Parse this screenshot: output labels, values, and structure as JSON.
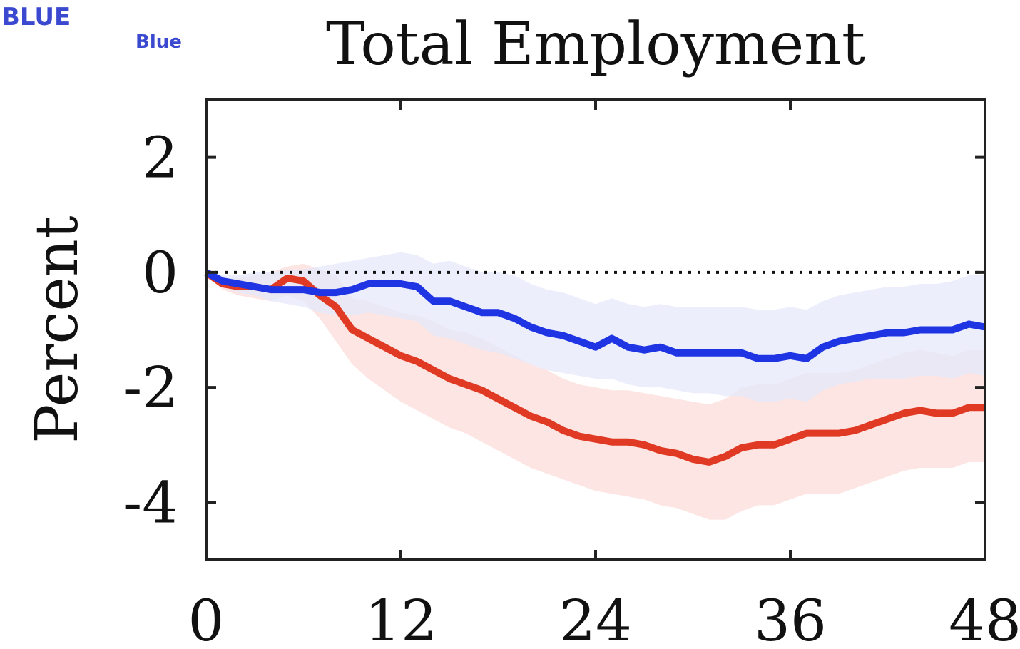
{
  "labels": {
    "top_left": "BLUE",
    "second": "Blue"
  },
  "chart_data": {
    "type": "line",
    "title": "Total Employment",
    "xlabel": "",
    "ylabel": "Percent",
    "xlim": [
      0,
      48
    ],
    "ylim": [
      -5,
      3
    ],
    "xticks": [
      0,
      12,
      24,
      36,
      48
    ],
    "yticks": [
      2,
      0,
      -2,
      -4
    ],
    "zero_line": "dotted",
    "grid": false,
    "legend": "none",
    "x": [
      0,
      1,
      2,
      3,
      4,
      5,
      6,
      7,
      8,
      9,
      10,
      11,
      12,
      13,
      14,
      15,
      16,
      17,
      18,
      19,
      20,
      21,
      22,
      23,
      24,
      25,
      26,
      27,
      28,
      29,
      30,
      31,
      32,
      33,
      34,
      35,
      36,
      37,
      38,
      39,
      40,
      41,
      42,
      43,
      44,
      45,
      46,
      47,
      48
    ],
    "series": [
      {
        "color": "#e03a24",
        "band_color": "#fbdcd8",
        "values": [
          0,
          -0.2,
          -0.25,
          -0.25,
          -0.3,
          -0.1,
          -0.15,
          -0.4,
          -0.6,
          -1.0,
          -1.15,
          -1.3,
          -1.45,
          -1.55,
          -1.7,
          -1.85,
          -1.95,
          -2.05,
          -2.2,
          -2.35,
          -2.5,
          -2.6,
          -2.75,
          -2.85,
          -2.9,
          -2.95,
          -2.95,
          -3.0,
          -3.1,
          -3.15,
          -3.25,
          -3.3,
          -3.2,
          -3.05,
          -3.0,
          -3.0,
          -2.9,
          -2.8,
          -2.8,
          -2.8,
          -2.75,
          -2.65,
          -2.55,
          -2.45,
          -2.4,
          -2.45,
          -2.45,
          -2.35,
          -2.35
        ],
        "lower": [
          0,
          -0.3,
          -0.4,
          -0.45,
          -0.5,
          -0.4,
          -0.5,
          -0.8,
          -1.2,
          -1.6,
          -1.85,
          -2.05,
          -2.25,
          -2.4,
          -2.55,
          -2.7,
          -2.8,
          -2.95,
          -3.1,
          -3.25,
          -3.4,
          -3.5,
          -3.6,
          -3.7,
          -3.8,
          -3.85,
          -3.9,
          -3.95,
          -4.05,
          -4.1,
          -4.2,
          -4.3,
          -4.3,
          -4.15,
          -4.05,
          -4.05,
          -3.95,
          -3.85,
          -3.85,
          -3.85,
          -3.75,
          -3.65,
          -3.55,
          -3.45,
          -3.4,
          -3.4,
          -3.4,
          -3.3,
          -3.3
        ],
        "upper": [
          0,
          -0.1,
          -0.1,
          -0.05,
          0.0,
          0.1,
          0.15,
          0.05,
          -0.05,
          -0.45,
          -0.5,
          -0.6,
          -0.7,
          -0.75,
          -0.85,
          -1.0,
          -1.05,
          -1.15,
          -1.3,
          -1.45,
          -1.6,
          -1.7,
          -1.85,
          -1.95,
          -2.0,
          -2.05,
          -2.05,
          -2.1,
          -2.15,
          -2.2,
          -2.25,
          -2.3,
          -2.2,
          -2.0,
          -1.95,
          -1.95,
          -1.85,
          -1.75,
          -1.75,
          -1.75,
          -1.7,
          -1.6,
          -1.5,
          -1.4,
          -1.35,
          -1.4,
          -1.45,
          -1.35,
          -1.35
        ]
      },
      {
        "color": "#1f35e3",
        "band_color": "#e5e8fb",
        "values": [
          0,
          -0.15,
          -0.2,
          -0.25,
          -0.3,
          -0.3,
          -0.3,
          -0.35,
          -0.35,
          -0.3,
          -0.2,
          -0.2,
          -0.2,
          -0.25,
          -0.5,
          -0.5,
          -0.6,
          -0.7,
          -0.7,
          -0.8,
          -0.95,
          -1.05,
          -1.1,
          -1.2,
          -1.3,
          -1.15,
          -1.3,
          -1.35,
          -1.3,
          -1.4,
          -1.4,
          -1.4,
          -1.4,
          -1.4,
          -1.5,
          -1.5,
          -1.45,
          -1.5,
          -1.3,
          -1.2,
          -1.15,
          -1.1,
          -1.05,
          -1.05,
          -1.0,
          -1.0,
          -1.0,
          -0.9,
          -0.95
        ],
        "lower": [
          0,
          -0.25,
          -0.35,
          -0.4,
          -0.5,
          -0.55,
          -0.6,
          -0.7,
          -0.75,
          -0.75,
          -0.7,
          -0.75,
          -0.8,
          -0.85,
          -1.1,
          -1.15,
          -1.25,
          -1.35,
          -1.4,
          -1.5,
          -1.6,
          -1.7,
          -1.75,
          -1.8,
          -1.85,
          -1.85,
          -1.95,
          -2.0,
          -2.0,
          -2.05,
          -2.1,
          -2.1,
          -2.15,
          -2.15,
          -2.25,
          -2.25,
          -2.2,
          -2.25,
          -2.05,
          -1.95,
          -1.9,
          -1.85,
          -1.85,
          -1.85,
          -1.8,
          -1.8,
          -1.85,
          -1.75,
          -1.8
        ],
        "upper": [
          0,
          -0.05,
          -0.05,
          0.0,
          0.0,
          0.05,
          0.05,
          0.1,
          0.15,
          0.2,
          0.25,
          0.3,
          0.35,
          0.3,
          0.15,
          0.2,
          0.1,
          0.0,
          0.0,
          -0.05,
          -0.2,
          -0.3,
          -0.35,
          -0.45,
          -0.55,
          -0.45,
          -0.55,
          -0.6,
          -0.55,
          -0.6,
          -0.6,
          -0.6,
          -0.6,
          -0.6,
          -0.65,
          -0.65,
          -0.6,
          -0.65,
          -0.5,
          -0.4,
          -0.35,
          -0.3,
          -0.25,
          -0.25,
          -0.2,
          -0.2,
          -0.15,
          -0.05,
          -0.05
        ]
      }
    ]
  }
}
